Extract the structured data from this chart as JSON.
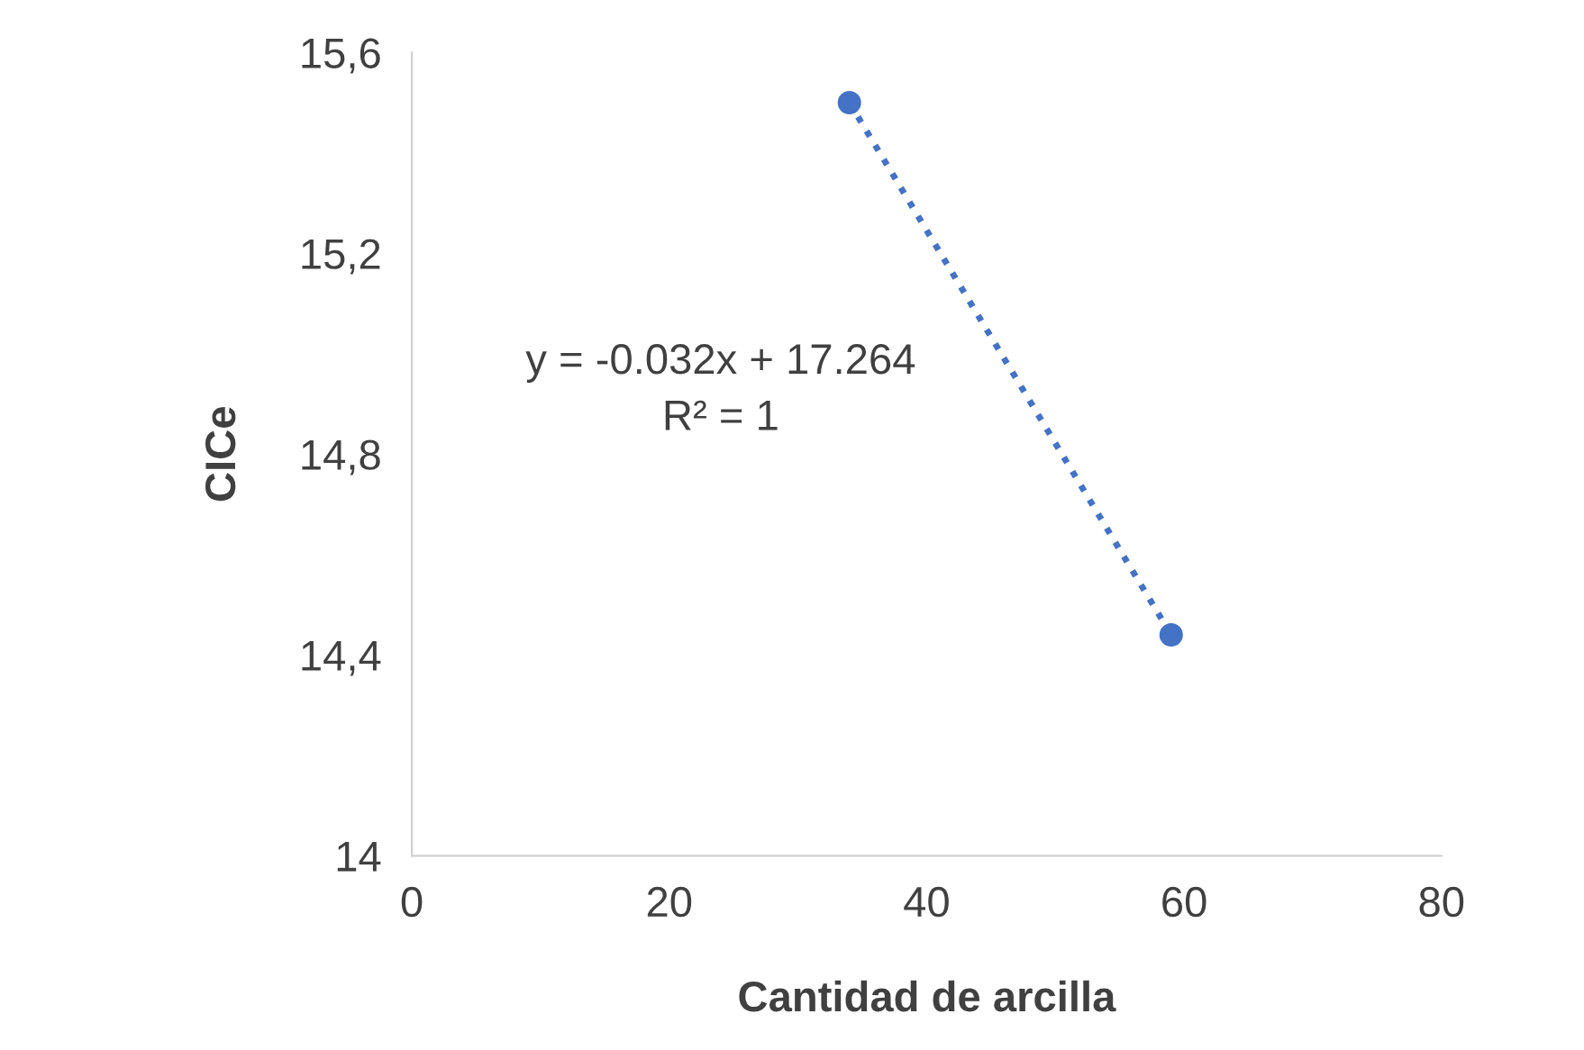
{
  "chart_data": {
    "type": "scatter",
    "xlabel": "Cantidad de arcilla",
    "ylabel": "CICe",
    "x": [
      34,
      59
    ],
    "series": [
      {
        "color": "#4472c4",
        "values": [
          15.5,
          14.44
        ],
        "marker": "circle"
      },
      {
        "type": "line",
        "color": "#4472c4",
        "x": [
          34,
          59
        ],
        "values": [
          15.5,
          14.44
        ],
        "line_style": "dotted",
        "marker": "none"
      }
    ],
    "annotations": [
      "y = -0.032x + 17.264",
      "R² = 1"
    ],
    "xlim": [
      0,
      80
    ],
    "xticks": [
      0,
      20,
      40,
      60,
      80
    ],
    "ylim": [
      14,
      15.6
    ],
    "yticks": [
      {
        "value": 14,
        "label": "14"
      },
      {
        "value": 14.4,
        "label": "14,4"
      },
      {
        "value": 14.8,
        "label": "14,8"
      },
      {
        "value": 15.2,
        "label": "15,2"
      },
      {
        "value": 15.6,
        "label": "15,6"
      }
    ],
    "grid": false,
    "legend": false
  }
}
